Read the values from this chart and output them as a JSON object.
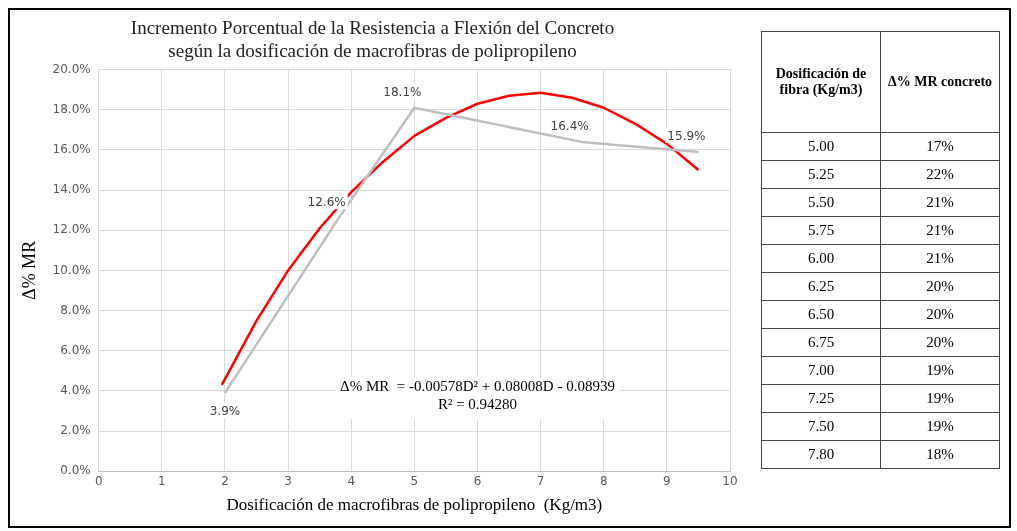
{
  "chart_data": [
    {
      "type": "line",
      "title": "Incremento Porcentual de la Resistencia a Flexión del Concreto\nsegún la dosificación de macrofibras de polipropileno",
      "xlabel": "Dosificación de macrofibras de polipropileno  (Kg/m3)",
      "ylabel": "Δ% MR",
      "xlim": [
        0,
        10
      ],
      "xticks": [
        0,
        1,
        2,
        3,
        4,
        5,
        6,
        7,
        8,
        9,
        10
      ],
      "ylim": [
        0,
        20
      ],
      "yticks": [
        {
          "value": 0,
          "label": "0.0%"
        },
        {
          "value": 2,
          "label": "2.0%"
        },
        {
          "value": 4,
          "label": "4.0%"
        },
        {
          "value": 6,
          "label": "6.0%"
        },
        {
          "value": 8,
          "label": "8.0%"
        },
        {
          "value": 10,
          "label": "10.0%"
        },
        {
          "value": 12,
          "label": "12.0%"
        },
        {
          "value": 14,
          "label": "14.0%"
        },
        {
          "value": 16,
          "label": "16.0%"
        },
        {
          "value": 18,
          "label": "18.0%"
        },
        {
          "value": 20,
          "label": "20.0%"
        }
      ],
      "grid": true,
      "legend": false,
      "marker": "none",
      "line_style": "solid",
      "series": [
        {
          "color": "#bfbfbf",
          "x": [
            2,
            3.8,
            5,
            7.65,
            9.5
          ],
          "values": [
            3.9,
            12.6,
            18.1,
            16.4,
            15.9
          ],
          "value_labels": [
            "3.9%",
            "12.6%",
            "18.1%",
            "16.4%",
            "15.9%"
          ]
        },
        {
          "color": "#ff0000",
          "x": [
            1.95,
            2.5,
            3,
            3.5,
            4,
            4.5,
            5,
            5.5,
            6,
            6.5,
            7,
            7.5,
            8,
            8.5,
            9,
            9.5
          ],
          "values": [
            4.3,
            7.5,
            10,
            12.1,
            13.9,
            15.4,
            16.7,
            17.6,
            18.3,
            18.7,
            18.85,
            18.6,
            18.1,
            17.3,
            16.3,
            15
          ]
        }
      ],
      "annotations": [
        "Δ% MR  = -0.00578D² + 0.08008D - 0.08939",
        "R² = 0.94280"
      ]
    },
    {
      "type": "heatmap",
      "ylabel": "Dosificación de fibra (Kg/m3)",
      "categories": [
        "Δ% MR concreto"
      ],
      "y_categories": [
        "5.00",
        "5.25",
        "5.50",
        "5.75",
        "6.00",
        "6.25",
        "6.50",
        "6.75",
        "7.00",
        "7.25",
        "7.50",
        "7.80"
      ],
      "cells": [
        [
          17
        ],
        [
          22
        ],
        [
          21
        ],
        [
          21
        ],
        [
          21
        ],
        [
          20
        ],
        [
          20
        ],
        [
          20
        ],
        [
          19
        ],
        [
          19
        ],
        [
          19
        ],
        [
          18
        ]
      ],
      "cell_labels": [
        [
          "17%"
        ],
        [
          "22%"
        ],
        [
          "21%"
        ],
        [
          "21%"
        ],
        [
          "21%"
        ],
        [
          "20%"
        ],
        [
          "20%"
        ],
        [
          "20%"
        ],
        [
          "19%"
        ],
        [
          "19%"
        ],
        [
          "19%"
        ],
        [
          "18%"
        ]
      ]
    }
  ]
}
